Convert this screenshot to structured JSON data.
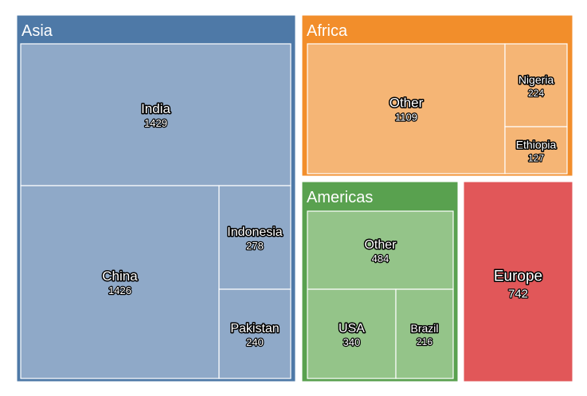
{
  "chart_data": {
    "type": "treemap",
    "title": "",
    "regions": [
      {
        "name": "Asia",
        "color": "#4e79a7",
        "leaf_color": "#8fa9c8",
        "children": [
          {
            "name": "India",
            "value": 1429
          },
          {
            "name": "China",
            "value": 1426
          },
          {
            "name": "Indonesia",
            "value": 278
          },
          {
            "name": "Pakistan",
            "value": 240
          }
        ]
      },
      {
        "name": "Africa",
        "color": "#f28e2b",
        "leaf_color": "#f5b575",
        "children": [
          {
            "name": "Other",
            "value": 1109
          },
          {
            "name": "Nigeria",
            "value": 224
          },
          {
            "name": "Ethiopia",
            "value": 127
          }
        ]
      },
      {
        "name": "Americas",
        "color": "#59a14f",
        "leaf_color": "#94c489",
        "children": [
          {
            "name": "Other",
            "value": 484
          },
          {
            "name": "USA",
            "value": 340
          },
          {
            "name": "Brazil",
            "value": 216
          }
        ]
      },
      {
        "name": "Europe",
        "color": "#e15759",
        "leaf_color": "#e15759",
        "value": 742,
        "children": []
      }
    ]
  }
}
